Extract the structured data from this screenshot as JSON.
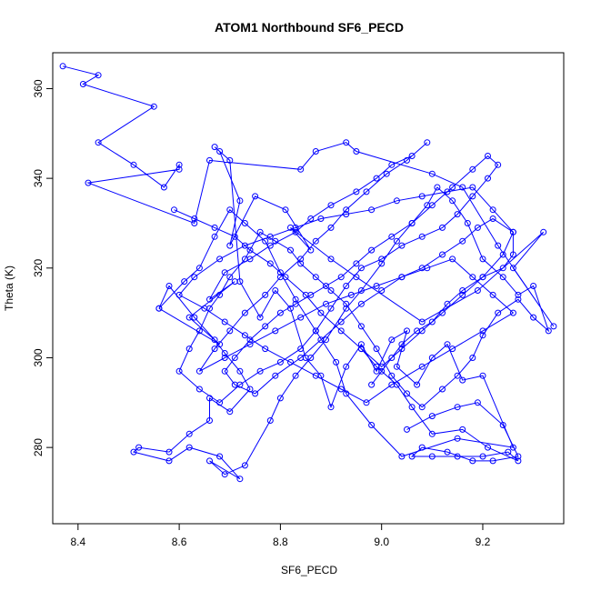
{
  "chart_data": {
    "type": "line",
    "title": "ATOM1 Northbound SF6_PECD",
    "xlabel": "SF6_PECD",
    "ylabel": "Theta (K)",
    "xlim": [
      8.35,
      9.36
    ],
    "ylim": [
      263,
      368
    ],
    "x_ticks": [
      8.4,
      8.6,
      8.8,
      9.0,
      9.2
    ],
    "x_tick_labels": [
      "8.4",
      "8.6",
      "8.8",
      "9.0",
      "9.2"
    ],
    "y_ticks": [
      280,
      300,
      320,
      340,
      360
    ],
    "y_tick_labels": [
      "280",
      "300",
      "320",
      "340",
      "360"
    ],
    "grid": false,
    "series_color": "#0000ff",
    "markers": "open-circle",
    "series": [
      {
        "x": [
          8.37,
          8.44,
          8.41,
          8.55,
          8.44,
          8.51,
          8.57,
          8.6,
          8.6,
          8.42,
          8.63,
          8.66,
          8.84,
          8.87,
          8.93,
          8.95,
          9.1,
          9.16,
          9.23,
          9.34,
          9.26,
          9.32,
          9.19,
          9.08,
          8.95,
          8.9,
          8.82,
          8.86,
          8.81,
          8.75,
          8.7,
          8.72,
          8.68,
          8.67,
          8.7,
          8.72,
          8.76,
          8.79,
          8.82,
          8.85,
          8.88,
          8.9,
          8.93,
          8.96,
          8.99,
          9.02,
          9.05,
          9.03,
          9.07,
          9.1,
          9.13,
          9.16,
          9.2,
          9.26,
          9.15,
          9.04,
          8.98,
          8.93,
          8.91,
          8.87,
          8.83,
          8.8,
          8.77,
          8.73,
          8.7,
          8.67,
          8.64,
          8.61,
          8.56,
          8.58,
          8.63,
          8.67,
          8.69,
          8.72,
          8.74,
          8.7,
          8.66,
          8.66,
          8.62,
          8.58,
          8.52,
          8.51,
          8.58,
          8.62,
          8.68,
          8.72,
          8.66,
          8.69,
          8.73,
          8.78,
          8.8,
          8.83,
          8.86,
          8.89,
          8.93,
          8.96,
          9.0,
          9.03,
          9.06,
          9.09,
          9.11,
          9.14,
          9.17,
          9.2,
          9.24,
          9.27,
          9.3,
          9.33,
          9.3,
          9.27,
          9.23,
          9.2,
          9.18,
          9.15,
          9.12,
          9.08,
          9.05,
          9.02,
          8.99,
          8.96,
          8.93,
          8.9,
          8.87,
          8.84,
          8.82,
          8.79,
          8.76,
          8.73,
          8.7,
          8.68,
          8.66,
          8.64,
          8.62,
          8.6,
          8.64,
          8.68,
          8.72,
          8.76,
          8.8,
          8.84,
          8.87,
          8.9,
          8.93,
          8.96,
          9.0,
          9.04,
          9.08,
          9.12,
          9.15,
          9.18,
          9.21,
          9.23,
          9.21,
          9.18,
          9.14,
          9.1,
          9.06,
          9.02,
          8.98,
          8.95,
          8.92,
          8.89,
          8.86,
          8.83,
          8.8,
          8.77,
          8.74,
          8.71,
          8.69,
          8.71,
          8.75,
          8.79,
          8.84,
          8.88,
          8.92,
          8.96,
          9.0,
          9.04,
          9.08,
          9.12,
          9.16,
          9.19,
          9.22,
          9.26,
          9.26,
          9.24,
          9.2,
          9.16,
          9.13,
          9.1,
          9.07,
          9.04,
          9.02,
          9.0,
          8.98
        ],
        "y": [
          365,
          363,
          361,
          356,
          348,
          343,
          338,
          343,
          342,
          339,
          330,
          344,
          342,
          346,
          348,
          346,
          341,
          338,
          325,
          307,
          320,
          328,
          315,
          308,
          318,
          322,
          329,
          324,
          333,
          336,
          325,
          335,
          346,
          347,
          344,
          317,
          309,
          315,
          311,
          300,
          296,
          289,
          298,
          303,
          297,
          304,
          306,
          298,
          294,
          300,
          303,
          295,
          296,
          280,
          282,
          278,
          285,
          292,
          299,
          306,
          313,
          319,
          326,
          330,
          333,
          327,
          320,
          317,
          311,
          316,
          309,
          304,
          301,
          297,
          293,
          288,
          291,
          286,
          283,
          279,
          280,
          279,
          277,
          280,
          278,
          273,
          277,
          274,
          276,
          286,
          291,
          296,
          300,
          304,
          311,
          315,
          321,
          326,
          330,
          334,
          338,
          335,
          330,
          322,
          318,
          314,
          316,
          306,
          309,
          313,
          310,
          305,
          300,
          296,
          293,
          289,
          292,
          296,
          302,
          307,
          312,
          315,
          318,
          321,
          324,
          326,
          328,
          322,
          318,
          314,
          311,
          306,
          302,
          297,
          293,
          290,
          294,
          297,
          299,
          302,
          306,
          311,
          316,
          320,
          322,
          325,
          327,
          329,
          332,
          336,
          340,
          343,
          345,
          342,
          338,
          334,
          330,
          327,
          324,
          321,
          318,
          316,
          314,
          312,
          310,
          307,
          304,
          300,
          297,
          294,
          292,
          296,
          300,
          304,
          308,
          312,
          315,
          318,
          320,
          323,
          326,
          329,
          331,
          328,
          323,
          320,
          318,
          315,
          312,
          308,
          306,
          303,
          300,
          297,
          294
        ]
      },
      {
        "x": [
          8.56,
          8.68,
          8.62,
          8.71,
          8.66,
          8.69,
          8.74,
          8.78,
          8.83,
          8.86,
          8.9,
          8.95,
          8.99,
          9.02,
          9.06,
          9.09,
          9.05,
          9.01,
          8.97,
          8.93,
          8.9,
          8.87,
          8.84,
          8.8,
          8.77,
          8.73,
          8.7,
          8.67,
          8.64,
          8.69,
          8.74,
          8.79,
          8.84,
          8.89,
          8.94,
          8.99,
          9.04,
          9.09,
          9.14,
          9.18,
          9.22,
          9.26,
          9.2,
          9.14,
          9.08,
          9.02,
          8.97,
          8.92,
          8.87,
          8.82,
          8.77,
          8.73,
          8.69,
          8.65,
          8.6,
          8.63,
          8.68,
          8.73,
          8.78,
          8.83,
          8.88,
          8.93,
          8.98,
          9.03,
          9.08,
          9.13,
          9.18,
          9.22,
          9.26,
          9.24,
          9.2,
          9.16,
          9.12,
          9.08,
          9.04,
          9.0,
          8.96,
          8.92,
          8.88,
          8.85,
          8.81,
          8.78,
          8.74,
          8.71,
          8.67,
          8.63,
          8.59
        ],
        "y": [
          311,
          303,
          309,
          317,
          313,
          319,
          322,
          325,
          328,
          331,
          334,
          337,
          340,
          343,
          345,
          348,
          344,
          341,
          337,
          333,
          329,
          326,
          322,
          318,
          314,
          310,
          306,
          302,
          297,
          300,
          303,
          306,
          309,
          312,
          314,
          316,
          318,
          320,
          322,
          318,
          314,
          310,
          306,
          302,
          298,
          294,
          290,
          293,
          296,
          299,
          302,
          305,
          308,
          311,
          314,
          318,
          322,
          325,
          327,
          329,
          331,
          332,
          333,
          335,
          336,
          337,
          338,
          333,
          328,
          323,
          318,
          314,
          310,
          306,
          302,
          298,
          302,
          306,
          310,
          314,
          318,
          321,
          324,
          327,
          329,
          331,
          333
        ]
      },
      {
        "x": [
          9.05,
          9.1,
          9.15,
          9.19,
          9.24,
          9.27,
          9.22,
          9.18,
          9.13,
          9.08,
          9.06,
          9.1,
          9.15,
          9.2,
          9.25,
          9.27,
          9.21,
          9.16,
          9.1,
          9.06,
          9.03,
          8.99,
          8.96
        ],
        "y": [
          284,
          287,
          289,
          290,
          285,
          278,
          277,
          277,
          279,
          280,
          278,
          278,
          278,
          278,
          279,
          277,
          280,
          284,
          283,
          289,
          294,
          298,
          302
        ]
      }
    ]
  }
}
